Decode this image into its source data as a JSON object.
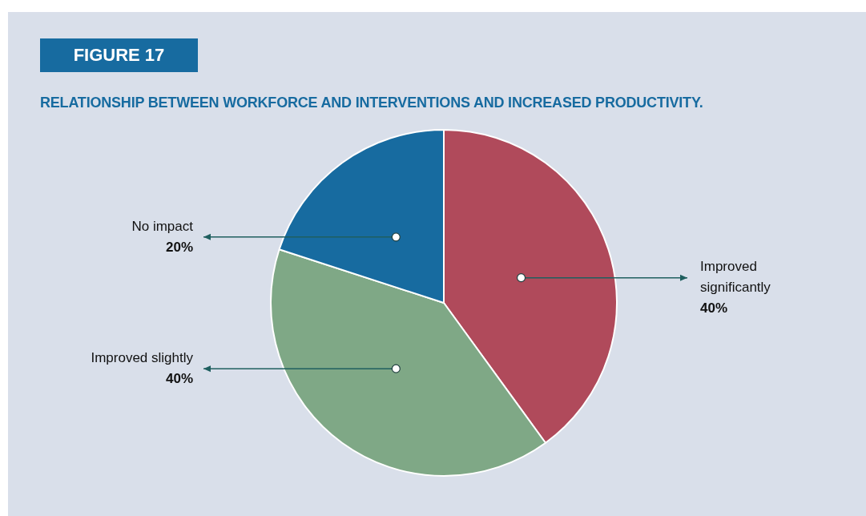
{
  "chart_data": {
    "type": "pie",
    "title": "FIGURE 17",
    "subtitle": "RELATIONSHIP BETWEEN WORKFORCE AND INTERVENTIONS AND INCREASED PRODUCTIVITY.",
    "categories": [
      "Improved significantly",
      "Improved slightly",
      "No impact"
    ],
    "values": [
      40,
      40,
      20
    ],
    "colors": [
      "#b04a5b",
      "#7fa886",
      "#176ba0"
    ],
    "value_labels": [
      "40%",
      "40%",
      "20%"
    ],
    "legend": false
  }
}
